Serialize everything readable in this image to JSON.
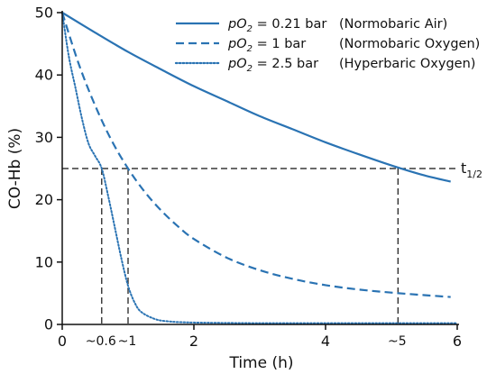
{
  "chart_data": {
    "type": "line",
    "xlabel": "Time (h)",
    "ylabel": "CO-Hb (%)",
    "xlim": [
      0,
      6
    ],
    "ylim": [
      0,
      50
    ],
    "xticks": [
      0,
      2,
      4,
      6
    ],
    "yticks": [
      0,
      10,
      20,
      30,
      40,
      50
    ],
    "grid": false,
    "legend_position": "top-right",
    "color": "#2a73b3",
    "series": [
      {
        "name_parts": [
          "pO",
          "2",
          " = 0.21 bar"
        ],
        "note": "(Normobaric Air)",
        "style": "solid",
        "x": [
          0,
          0.5,
          1,
          1.5,
          2,
          2.5,
          3,
          3.5,
          4,
          4.5,
          5,
          5.5,
          5.9
        ],
        "y": [
          50,
          46.8,
          43.7,
          40.9,
          38.2,
          35.8,
          33.4,
          31.3,
          29.2,
          27.3,
          25.5,
          23.9,
          22.9
        ]
      },
      {
        "name_parts": [
          "pO",
          "2",
          " = 1 bar"
        ],
        "note": "(Normobaric Oxygen)",
        "style": "dashed",
        "x": [
          0,
          0.25,
          0.5,
          0.75,
          1,
          1.25,
          1.5,
          1.75,
          2,
          2.5,
          3,
          3.5,
          4,
          4.5,
          5,
          5.5,
          5.9
        ],
        "y": [
          50,
          41.8,
          35.1,
          29.5,
          25,
          21.3,
          18.3,
          15.8,
          13.7,
          10.7,
          8.7,
          7.3,
          6.3,
          5.6,
          5.1,
          4.7,
          4.4
        ]
      },
      {
        "name_parts": [
          "pO",
          "2",
          " = 2.5 bar"
        ],
        "note": "(Hyperbaric Oxygen)",
        "style": "dotted",
        "x": [
          0,
          0.1,
          0.2,
          0.3,
          0.4,
          0.5,
          0.6,
          0.7,
          0.8,
          0.9,
          1,
          1.1,
          1.2,
          1.4,
          1.6,
          2,
          3,
          4,
          5,
          6
        ],
        "y": [
          50,
          43,
          38,
          33,
          29,
          27,
          25,
          20.5,
          15.5,
          10.5,
          6.2,
          3.5,
          2,
          0.9,
          0.5,
          0.3,
          0.2,
          0.2,
          0.2,
          0.2
        ]
      }
    ],
    "half_life": {
      "label_main": "t",
      "label_sub": "1/2",
      "y": 25,
      "markers": [
        {
          "x": 0.6,
          "label": "~0.6"
        },
        {
          "x": 1,
          "label": "~1"
        },
        {
          "x": 5.1,
          "label": "~5"
        }
      ]
    }
  }
}
